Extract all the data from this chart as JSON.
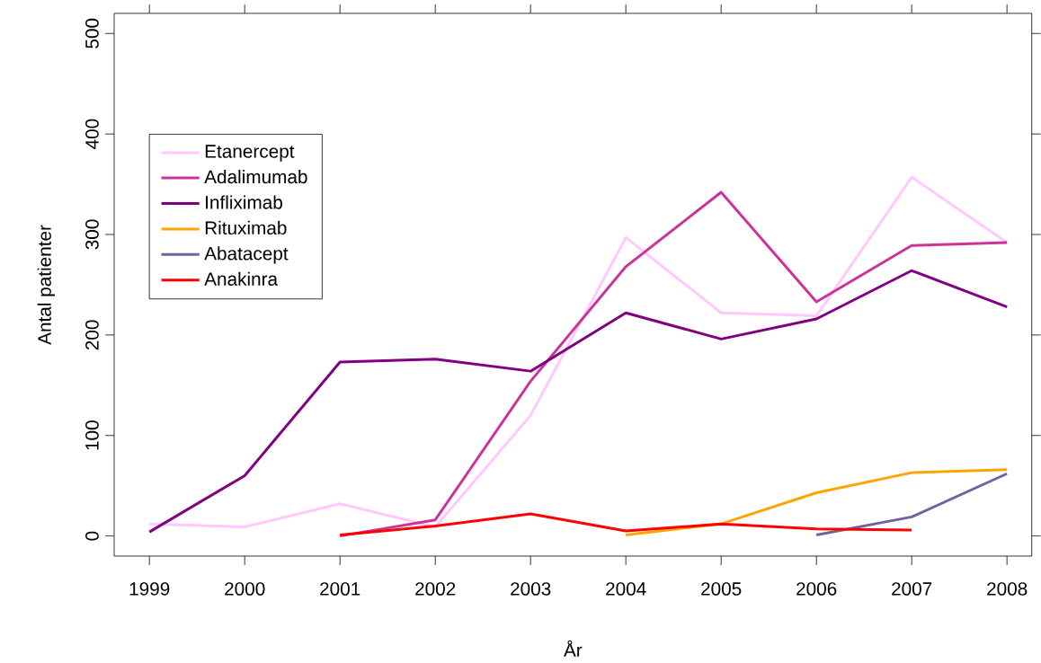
{
  "chart_data": {
    "type": "line",
    "xlabel": "År",
    "ylabel": "Antal patienter",
    "xlim": [
      1998.63,
      2008.26
    ],
    "ylim": [
      -20,
      520
    ],
    "xticks": [
      1999,
      2000,
      2001,
      2002,
      2003,
      2004,
      2005,
      2006,
      2007,
      2008
    ],
    "yticks": [
      0,
      100,
      200,
      300,
      400,
      500
    ],
    "legend": "top left",
    "series": [
      {
        "name": "Etanercept",
        "color": "#ffc8ff",
        "x": [
          1999,
          2000,
          2001,
          2002,
          2003,
          2004,
          2005,
          2006,
          2007,
          2008
        ],
        "values": [
          12,
          9,
          32,
          9,
          120,
          297,
          222,
          219,
          357,
          292
        ]
      },
      {
        "name": "Adalimumab",
        "color": "#cc3399",
        "x": [
          2001,
          2002,
          2003,
          2004,
          2005,
          2006,
          2007,
          2008
        ],
        "values": [
          0,
          16,
          154,
          268,
          342,
          233,
          289,
          292
        ]
      },
      {
        "name": "Infliximab",
        "color": "#800080",
        "x": [
          1999,
          2000,
          2001,
          2002,
          2003,
          2004,
          2005,
          2006,
          2007,
          2008
        ],
        "values": [
          4,
          60,
          173,
          176,
          164,
          222,
          196,
          216,
          264,
          228
        ]
      },
      {
        "name": "Rituximab",
        "color": "#ffa500",
        "x": [
          2004,
          2005,
          2006,
          2007,
          2008
        ],
        "values": [
          1,
          12,
          43,
          63,
          66
        ]
      },
      {
        "name": "Abatacept",
        "color": "#7560a0",
        "x": [
          2006,
          2007,
          2008
        ],
        "values": [
          1,
          19,
          62
        ]
      },
      {
        "name": "Anakinra",
        "color": "#ff0000",
        "x": [
          2001,
          2002,
          2003,
          2004,
          2005,
          2006,
          2007
        ],
        "values": [
          1,
          10,
          22,
          5,
          12,
          7,
          6
        ]
      }
    ]
  }
}
